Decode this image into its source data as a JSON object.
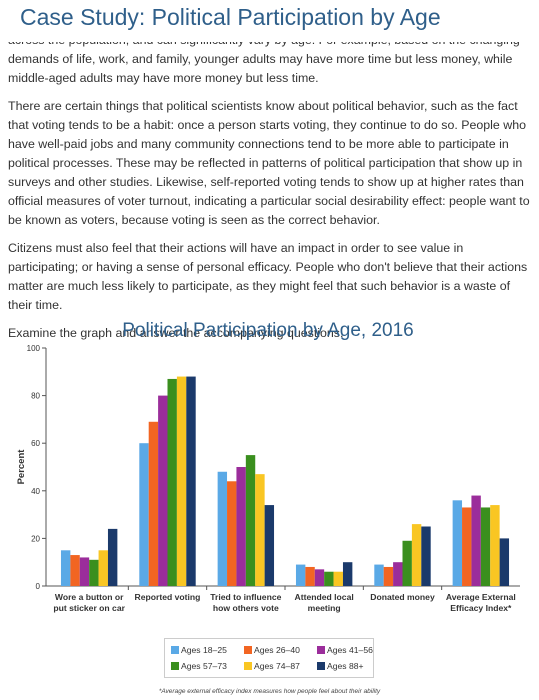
{
  "header": {
    "title": "Case Study: Political Participation by Age"
  },
  "paragraphs": [
    "across the population, and can significantly vary by age. For example, based on the changing demands of life, work, and family, younger adults may have more time but less money, while middle-aged adults may have more money but less time.",
    "There are certain things that political scientists know about political behavior, such as the fact that voting tends to be a habit: once a person starts voting, they continue to do so. People who have well-paid jobs and many community connections tend to be more able to participate in political processes. These may be reflected in patterns of political participation that show up in surveys and other studies. Likewise, self-reported voting tends to show up at higher rates than official measures of voter turnout, indicating a particular social desirability effect: people want to be known as voters, because voting is seen as the correct behavior.",
    "Citizens must also feel that their actions will have an impact in order to see value in participating; or having a sense of personal efficacy. People who don't believe that their actions matter are much less likely to participate, as they might feel that such behavior is a waste of their time.",
    "Examine the graph and answer the accompanying questions."
  ],
  "chart_data": {
    "type": "bar",
    "title": "Political Participation by Age, 2016",
    "y_label": "Percent",
    "categories": [
      "Wore a button or put sticker on car",
      "Reported voting",
      "Tried to influence how others vote",
      "Attended local meeting",
      "Donated money",
      "Average External Efficacy Index*"
    ],
    "series": [
      {
        "name": "Ages 18–25",
        "color": "#5aa9e6",
        "values": [
          15,
          60,
          48,
          9,
          9,
          36
        ]
      },
      {
        "name": "Ages 26–40",
        "color": "#f26522",
        "values": [
          13,
          69,
          44,
          8,
          8,
          33
        ]
      },
      {
        "name": "Ages 41–56",
        "color": "#9b2d9b",
        "values": [
          12,
          80,
          50,
          7,
          10,
          38
        ]
      },
      {
        "name": "Ages 57–73",
        "color": "#3a8f1e",
        "values": [
          11,
          87,
          55,
          6,
          19,
          33
        ]
      },
      {
        "name": "Ages 74–87",
        "color": "#f9c623",
        "values": [
          15,
          88,
          47,
          6,
          26,
          34
        ]
      },
      {
        "name": "Ages 88+",
        "color": "#1b3a6b",
        "values": [
          24,
          88,
          34,
          10,
          25,
          20
        ]
      }
    ],
    "ylim": [
      0,
      100
    ],
    "yticks": [
      0,
      20,
      40,
      60,
      80,
      100
    ],
    "footnote": "*Average external efficacy index measures how people feel about their ability"
  }
}
